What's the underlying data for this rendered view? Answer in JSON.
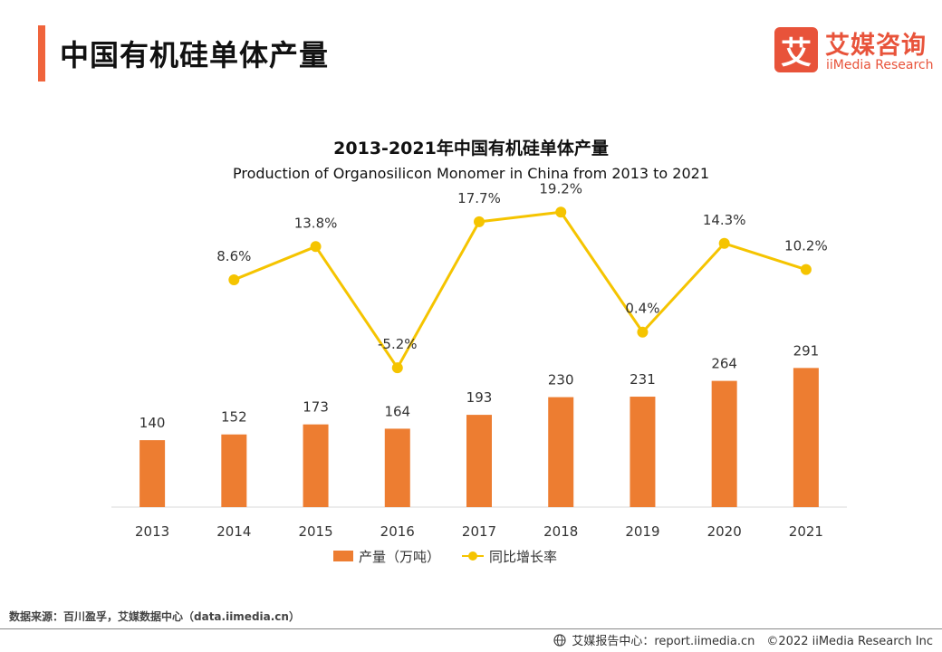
{
  "page": {
    "title": "中国有机硅单体产量"
  },
  "logo": {
    "mark": "艾",
    "cn": "艾媒咨询",
    "en": "iiMedia Research"
  },
  "chart_data": {
    "type": "bar",
    "title": "2013-2021年中国有机硅单体产量",
    "subtitle": "Production of Organosilicon Monomer in China from 2013 to 2021",
    "categories": [
      "2013",
      "2014",
      "2015",
      "2016",
      "2017",
      "2018",
      "2019",
      "2020",
      "2021"
    ],
    "series": [
      {
        "name": "产量（万吨）",
        "type": "bar",
        "color": "#ed7d31",
        "values": [
          140,
          152,
          173,
          164,
          193,
          230,
          231,
          264,
          291
        ],
        "labels": [
          "140",
          "152",
          "173",
          "164",
          "193",
          "230",
          "231",
          "264",
          "291"
        ]
      },
      {
        "name": "同比增长率",
        "type": "line",
        "color": "#f5c400",
        "values": [
          null,
          8.6,
          13.8,
          -5.2,
          17.7,
          19.2,
          0.4,
          14.3,
          10.2
        ],
        "labels": [
          "",
          "8.6%",
          "13.8%",
          "-5.2%",
          "17.7%",
          "19.2%",
          "0.4%",
          "14.3%",
          "10.2%"
        ]
      }
    ],
    "xlabel": "",
    "ylabel": "",
    "ylim": [
      0,
      300
    ],
    "y2lim": [
      -10,
      25
    ],
    "legend_position": "bottom-center"
  },
  "source": "数据来源：百川盈孚，艾媒数据中心（data.iimedia.cn）",
  "footer": {
    "icon": "globe-icon",
    "text": "艾媒报告中心：report.iimedia.cn　©2022  iiMedia Research  Inc"
  }
}
